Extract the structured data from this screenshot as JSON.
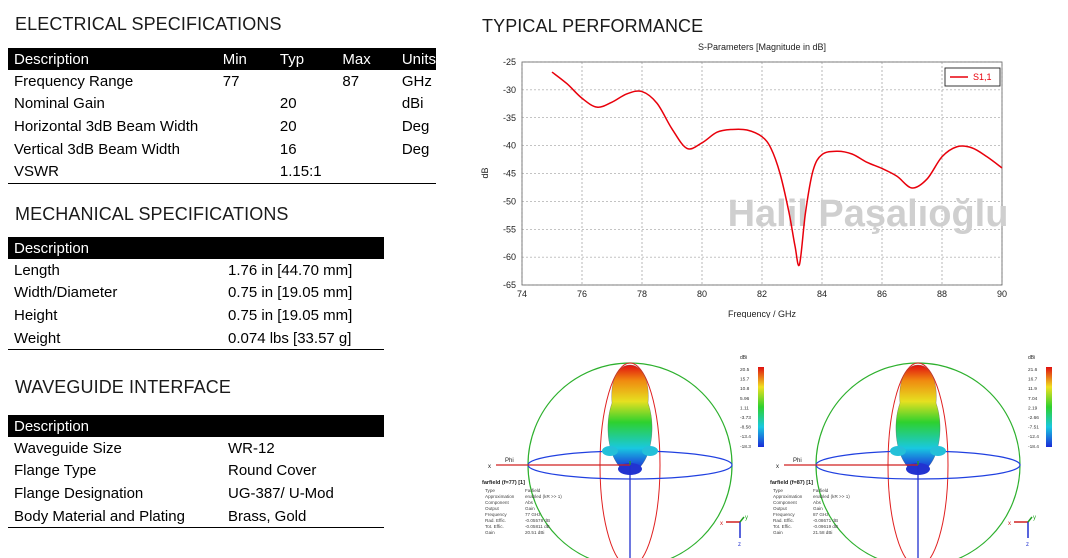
{
  "electrical": {
    "title": "ELECTRICAL SPECIFICATIONS",
    "headers": [
      "Description",
      "Min",
      "Typ",
      "Max",
      "Units"
    ],
    "rows": [
      [
        "Frequency Range",
        "77",
        "",
        "87",
        "GHz"
      ],
      [
        "Nominal Gain",
        "",
        "20",
        "",
        "dBi"
      ],
      [
        "Horizontal 3dB Beam Width",
        "",
        "20",
        "",
        "Deg"
      ],
      [
        "Vertical 3dB Beam Width",
        "",
        "16",
        "",
        "Deg"
      ],
      [
        "VSWR",
        "",
        "1.15:1",
        "",
        ""
      ]
    ]
  },
  "mechanical": {
    "title": "MECHANICAL SPECIFICATIONS",
    "header": "Description",
    "rows": [
      [
        "Length",
        "1.76 in [44.70 mm]"
      ],
      [
        "Width/Diameter",
        "0.75 in [19.05 mm]"
      ],
      [
        "Height",
        "0.75 in [19.05 mm]"
      ],
      [
        "Weight",
        "0.074 lbs [33.57 g]"
      ]
    ]
  },
  "waveguide": {
    "title": "WAVEGUIDE INTERFACE",
    "header": "Description",
    "rows": [
      [
        "Waveguide Size",
        "WR-12"
      ],
      [
        "Flange Type",
        "Round Cover"
      ],
      [
        "Flange Designation",
        "UG-387/ U-Mod"
      ],
      [
        "Body Material and Plating",
        "Brass, Gold"
      ]
    ]
  },
  "performance": {
    "title": "TYPICAL PERFORMANCE",
    "watermark": "Halil Paşalıoğlu"
  },
  "chart_data": {
    "type": "line",
    "title": "S-Parameters [Magnitude in dB]",
    "xlabel": "Frequency / GHz",
    "ylabel": "dB",
    "xlim": [
      74,
      90
    ],
    "ylim": [
      -65,
      -25
    ],
    "xticks": [
      74,
      76,
      78,
      80,
      82,
      84,
      86,
      88,
      90
    ],
    "yticks": [
      -25,
      -30,
      -35,
      -40,
      -45,
      -50,
      -55,
      -60,
      -65
    ],
    "grid": true,
    "legend_position": "top-right",
    "series": [
      {
        "name": "S1,1",
        "color": "#e8000b",
        "x": [
          75,
          75.5,
          76,
          76.5,
          77,
          77.5,
          78,
          78.5,
          79,
          79.5,
          80,
          80.5,
          81,
          81.5,
          82,
          82.3,
          82.6,
          82.9,
          83.1,
          83.25,
          83.45,
          83.7,
          84,
          84.5,
          85,
          85.5,
          86,
          86.5,
          87,
          87.5,
          88,
          88.5,
          89,
          89.5,
          90
        ],
        "y": [
          -26.8,
          -28.9,
          -31.5,
          -33.1,
          -32.2,
          -30.7,
          -30.3,
          -32.4,
          -37,
          -40.5,
          -39.5,
          -37.6,
          -37.1,
          -37.2,
          -38.4,
          -40.5,
          -45,
          -52,
          -58,
          -61.3,
          -52,
          -44.5,
          -41.6,
          -41,
          -41.5,
          -43,
          -44.1,
          -45.5,
          -47.6,
          -46,
          -42,
          -40.2,
          -40.4,
          -42,
          -44
        ]
      }
    ]
  },
  "farfield_left": {
    "title": "farfield (f=77) [1]",
    "unit": "dBi",
    "scale": [
      "20.5",
      "15.7",
      "10.8",
      "5.96",
      "1.11",
      "-3.73",
      "-8.58",
      "-13.4",
      "-18.3"
    ],
    "info_labels": [
      "Type",
      "Approximation",
      "Component",
      "Output",
      "Frequency",
      "Rad. Effic.",
      "Tot. Effic.",
      "Gain"
    ],
    "info_values": [
      "Farfield",
      "enabled (kR >> 1)",
      "Abs",
      "Gain",
      "77 GHz",
      "-0.05578 dB",
      "-0.05811 dB",
      "20.51 dBi"
    ],
    "axes": [
      "x",
      "y",
      "z",
      "Phi",
      "Theta"
    ]
  },
  "farfield_right": {
    "title": "farfield (f=87) [1]",
    "unit": "dBi",
    "scale": [
      "21.6",
      "16.7",
      "11.9",
      "7.04",
      "2.19",
      "-2.66",
      "-7.51",
      "-12.4",
      "-18.4"
    ],
    "info_labels": [
      "Type",
      "Approximation",
      "Component",
      "Output",
      "Frequency",
      "Rad. Effic.",
      "Tot. Effic.",
      "Gain"
    ],
    "info_values": [
      "Farfield",
      "enabled (kR >> 1)",
      "Abs",
      "Gain",
      "87 GHz",
      "-0.08671 dB",
      "-0.09619 dB",
      "21.58 dBi"
    ],
    "axes": [
      "x",
      "y",
      "z",
      "Phi",
      "Theta"
    ]
  }
}
